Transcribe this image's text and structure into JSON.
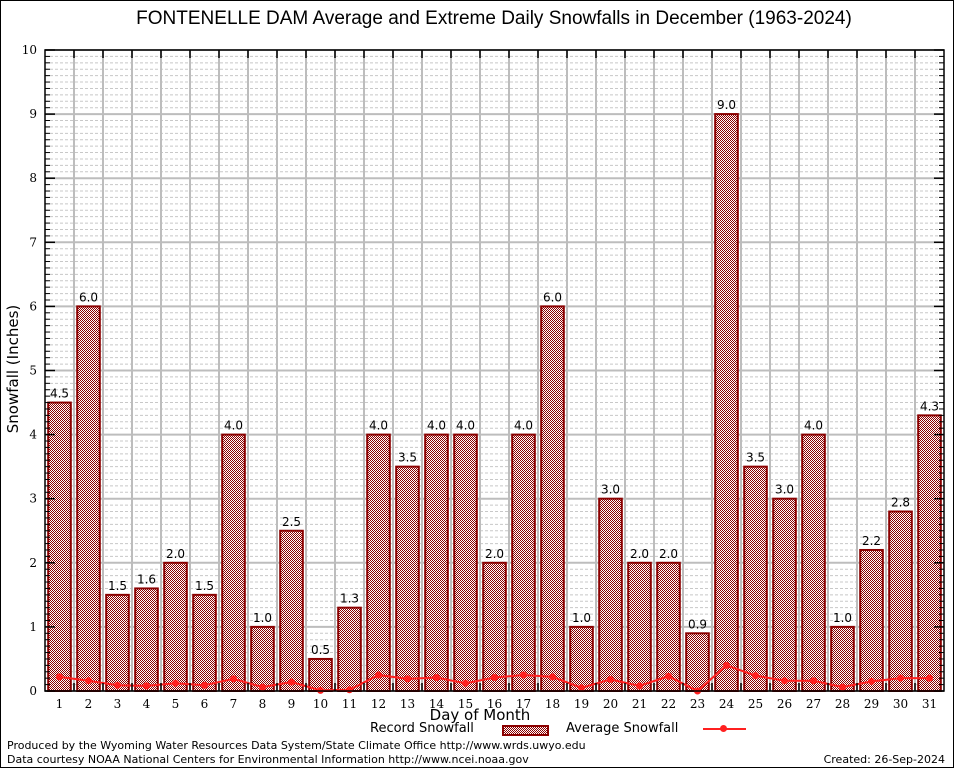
{
  "chart_data": {
    "type": "bar",
    "title": "FONTENELLE DAM Average and Extreme Daily Snowfalls in December (1963-2024)",
    "xlabel": "Day of Month",
    "ylabel": "Snowfall (Inches)",
    "ylim": [
      0,
      10
    ],
    "yticks": [
      "0",
      "1",
      "2",
      "3",
      "4",
      "5",
      "6",
      "7",
      "8",
      "9",
      "10"
    ],
    "grid": true,
    "categories": [
      "1",
      "2",
      "3",
      "4",
      "5",
      "6",
      "7",
      "8",
      "9",
      "10",
      "11",
      "12",
      "13",
      "14",
      "15",
      "16",
      "17",
      "18",
      "19",
      "20",
      "21",
      "22",
      "23",
      "24",
      "25",
      "26",
      "27",
      "28",
      "29",
      "30",
      "31"
    ],
    "series": [
      {
        "name": "Record Snowfall",
        "type": "bar",
        "color": "#8b0000",
        "values": [
          4.5,
          6.0,
          1.5,
          1.6,
          2.0,
          1.5,
          4.0,
          1.0,
          2.5,
          0.5,
          1.3,
          4.0,
          3.5,
          4.0,
          4.0,
          2.0,
          4.0,
          6.0,
          1.0,
          3.0,
          2.0,
          2.0,
          0.9,
          9.0,
          3.5,
          3.0,
          4.0,
          1.0,
          2.2,
          2.8,
          4.3
        ],
        "labels": [
          "4.5",
          "6.0",
          "1.5",
          "1.6",
          "2.0",
          "1.5",
          "4.0",
          "1.0",
          "2.5",
          "0.5",
          "1.3",
          "4.0",
          "3.5",
          "4.0",
          "4.0",
          "2.0",
          "4.0",
          "6.0",
          "1.0",
          "3.0",
          "2.0",
          "2.0",
          "0.9",
          "9.0",
          "3.5",
          "3.0",
          "4.0",
          "1.0",
          "2.2",
          "2.8",
          "4.3"
        ]
      },
      {
        "name": "Average Snowfall",
        "type": "line",
        "color": "#ff2020",
        "values": [
          0.22,
          0.16,
          0.09,
          0.08,
          0.12,
          0.09,
          0.19,
          0.06,
          0.14,
          0.01,
          0.02,
          0.25,
          0.19,
          0.21,
          0.12,
          0.21,
          0.25,
          0.22,
          0.05,
          0.18,
          0.08,
          0.23,
          0.0,
          0.4,
          0.24,
          0.16,
          0.16,
          0.06,
          0.15,
          0.2,
          0.2
        ]
      }
    ],
    "legend": {
      "placement": "bottom-center",
      "entries": [
        "Record Snowfall",
        "Average Snowfall"
      ]
    }
  },
  "footer": {
    "producer": "Produced by the Wyoming Water Resources Data System/State Climate Office http://www.wrds.uwyo.edu",
    "data_source": "Data courtesy NOAA National Centers for Environmental Information http://www.ncei.noaa.gov",
    "created": "Created: 26-Sep-2024"
  }
}
